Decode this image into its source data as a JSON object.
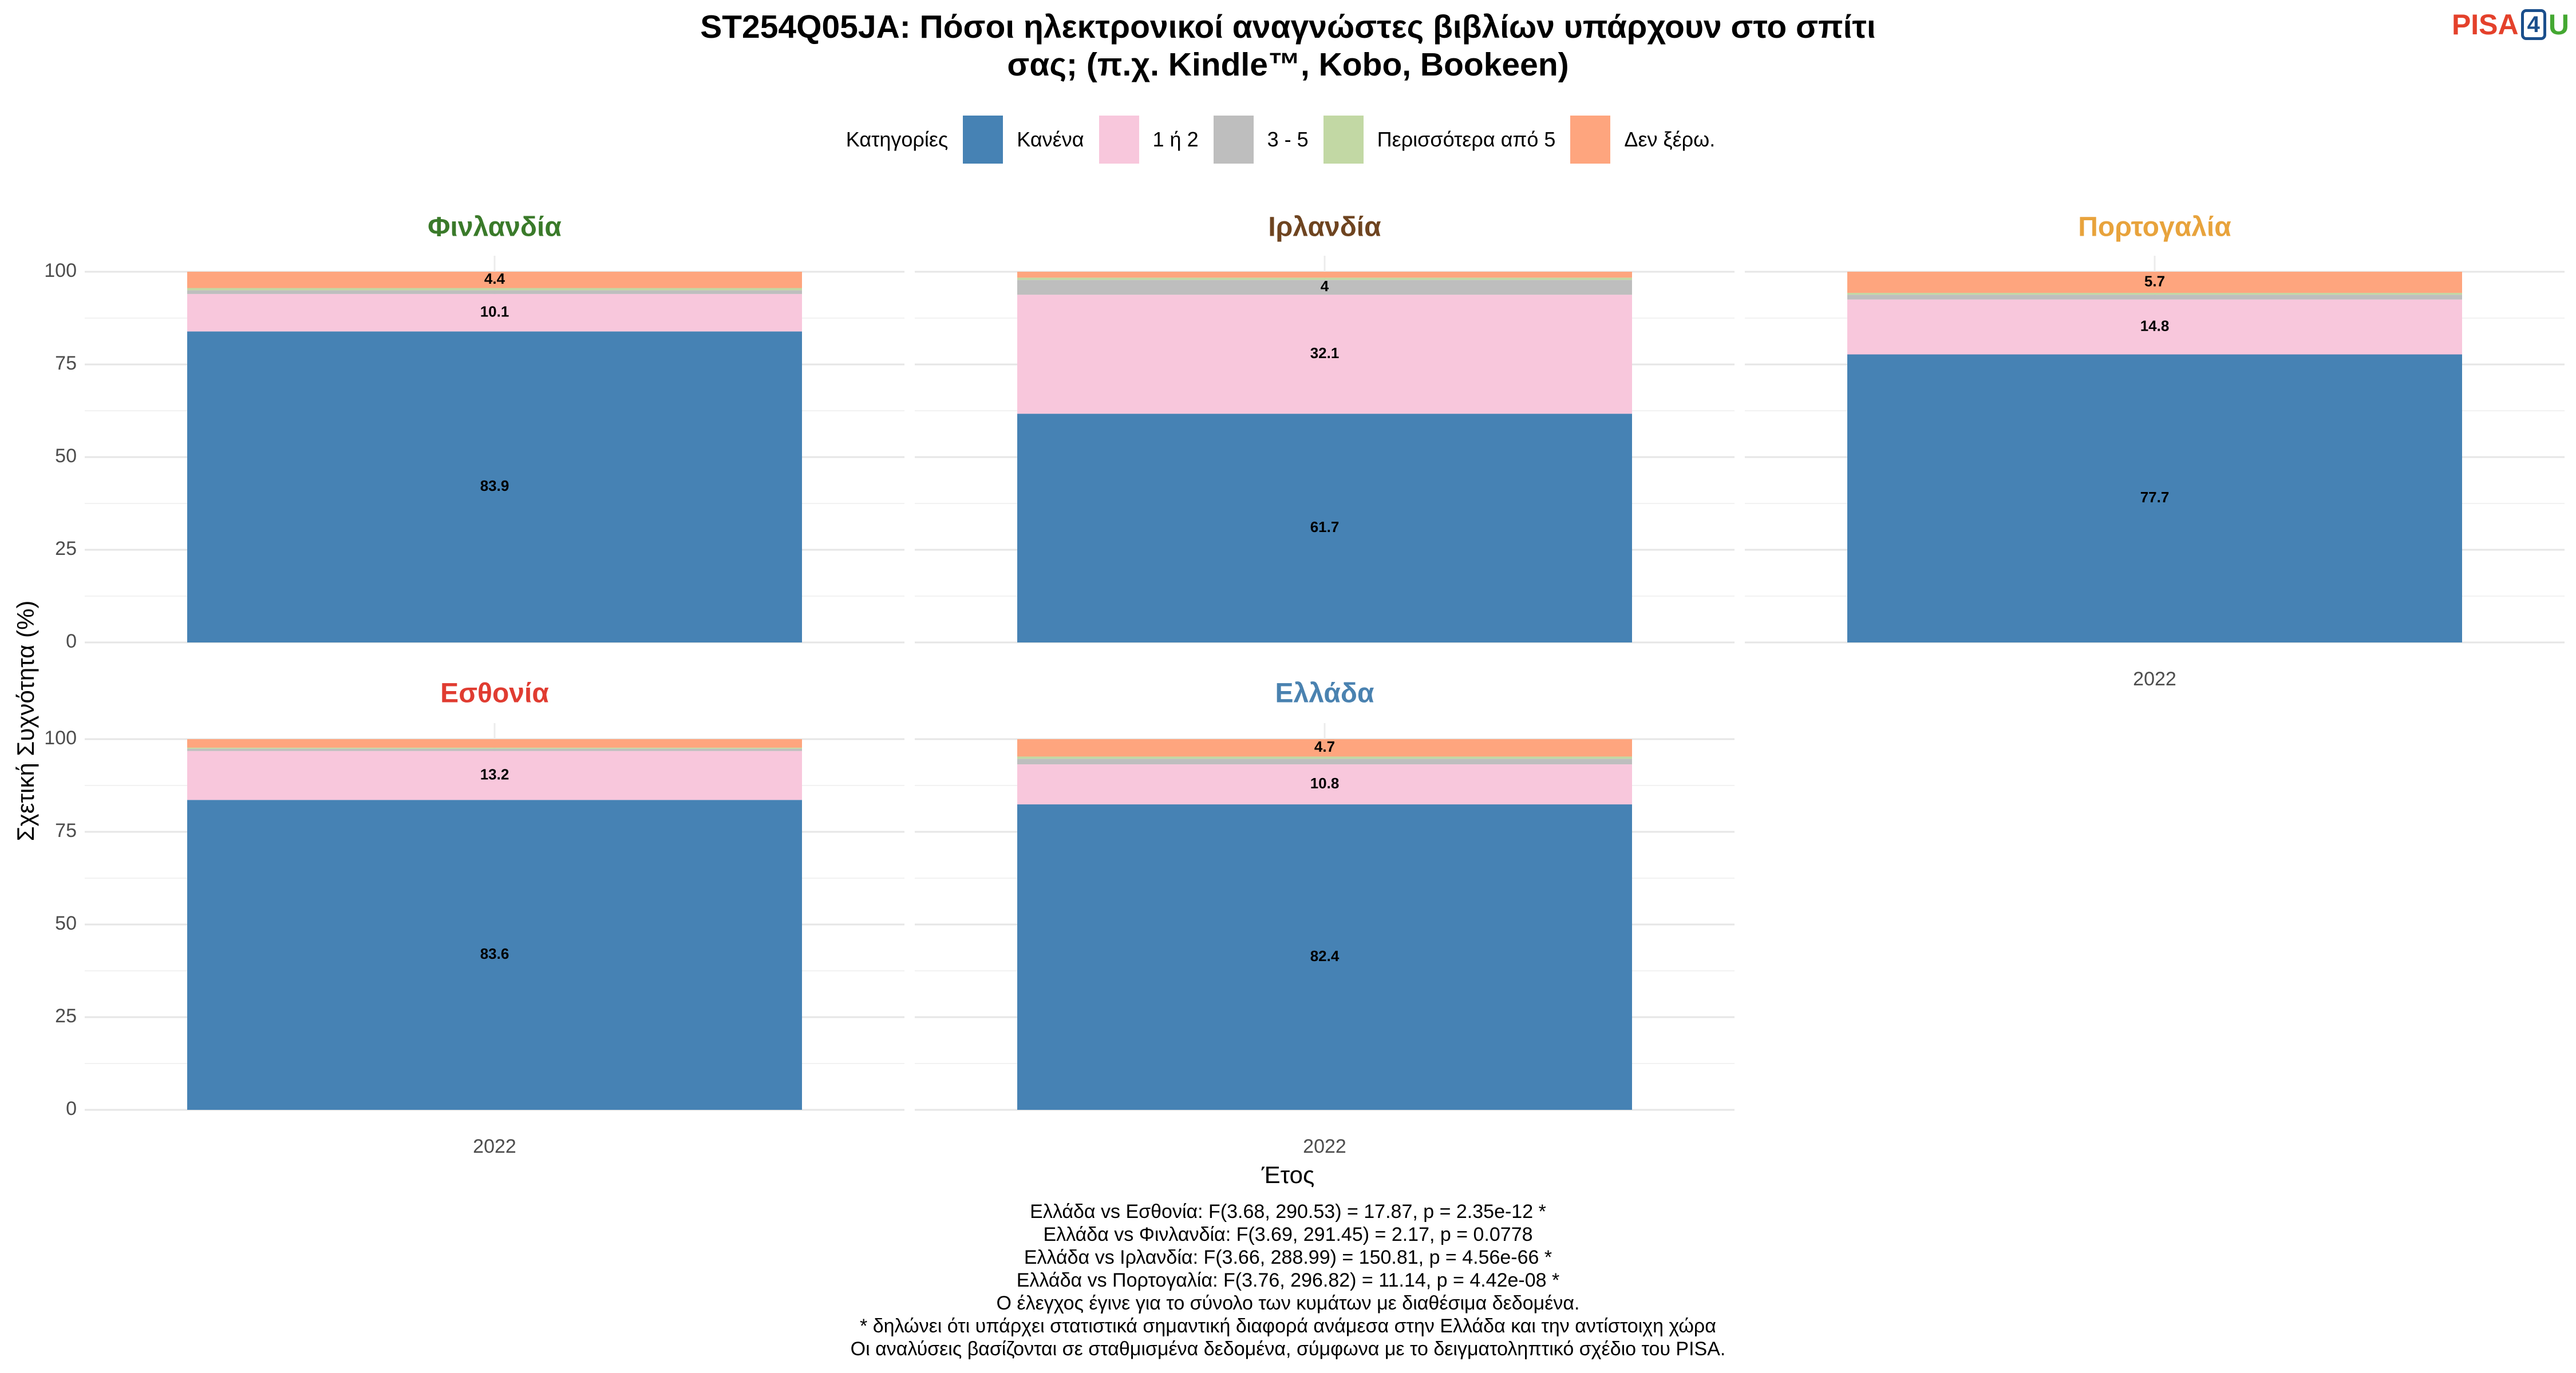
{
  "title": {
    "line1": "ST254Q05JA: Πόσοι ηλεκτρονικοί αναγνώστες βιβλίων υπάρχουν στο σπίτι",
    "line2": "σας; (π.χ. Kindle™, Kobo, Bookeen)"
  },
  "logo": {
    "part1": "PISA",
    "part2": "4",
    "part3": "U"
  },
  "legend": {
    "title": "Κατηγορίες",
    "items": [
      {
        "label": "Κανένα",
        "color": "#4682b4"
      },
      {
        "label": "1 ή 2",
        "color": "#f8c7dc"
      },
      {
        "label": "3 - 5",
        "color": "#bebebe"
      },
      {
        "label": "Περισσότερα από 5",
        "color": "#c2d8a4"
      },
      {
        "label": "Δεν ξέρω.",
        "color": "#fea57e"
      }
    ]
  },
  "axes": {
    "ylabel": "Σχετική Συχνότητα (%)",
    "xlabel": "Έτος"
  },
  "chart_data": {
    "type": "bar",
    "stacked": true,
    "xlabel": "Έτος",
    "ylabel": "Σχετική Συχνότητα (%)",
    "ylim": [
      0,
      100
    ],
    "yticks": [
      0,
      25,
      50,
      75,
      100
    ],
    "categories": [
      "2022"
    ],
    "series_names": [
      "Κανένα",
      "1 ή 2",
      "3 - 5",
      "Περισσότερα από 5",
      "Δεν ξέρω."
    ],
    "series_colors": [
      "#4682b4",
      "#f8c7dc",
      "#bebebe",
      "#c2d8a4",
      "#fea57e"
    ],
    "legend_position": "top",
    "grid": true,
    "panels": [
      {
        "name": "Φινλανδία",
        "color": "#3a7a2a",
        "year": "2022",
        "values": [
          83.9,
          10.1,
          1.0,
          0.6,
          4.4
        ],
        "labels": [
          "83.9",
          "10.1",
          "",
          "",
          "4.4"
        ]
      },
      {
        "name": "Ιρλανδία",
        "color": "#6e4420",
        "year": "2022",
        "values": [
          61.7,
          32.1,
          4.0,
          0.6,
          1.6
        ],
        "labels": [
          "61.7",
          "32.1",
          "4",
          "",
          ""
        ]
      },
      {
        "name": "Πορτογαλία",
        "color": "#e8a33c",
        "year": "2022",
        "values": [
          77.7,
          14.8,
          1.3,
          0.5,
          5.7
        ],
        "labels": [
          "77.7",
          "14.8",
          "",
          "",
          "5.7"
        ]
      },
      {
        "name": "Εσθονία",
        "color": "#e03c31",
        "year": "2022",
        "values": [
          83.6,
          13.2,
          0.6,
          0.3,
          2.3
        ],
        "labels": [
          "83.6",
          "13.2",
          "",
          "",
          ""
        ]
      },
      {
        "name": "Ελλάδα",
        "color": "#4a82b0",
        "year": "2022",
        "values": [
          82.4,
          10.8,
          1.5,
          0.6,
          4.7
        ],
        "labels": [
          "82.4",
          "10.8",
          "",
          "",
          "4.7"
        ]
      }
    ]
  },
  "footer": [
    "Ελλάδα vs Εσθονία: F(3.68, 290.53) = 17.87, p = 2.35e-12 *",
    "Ελλάδα vs Φινλανδία: F(3.69, 291.45) = 2.17, p = 0.0778",
    "Ελλάδα vs Ιρλανδία: F(3.66, 288.99) = 150.81, p = 4.56e-66 *",
    "Ελλάδα vs Πορτογαλία: F(3.76, 296.82) = 11.14, p = 4.42e-08 *",
    "Ο έλεγχος έγινε για το σύνολο των κυμάτων με διαθέσιμα δεδομένα.",
    "* δηλώνει ότι υπάρχει στατιστικά σημαντική διαφορά ανάμεσα στην Ελλάδα και την αντίστοιχη χώρα",
    "Οι αναλύσεις βασίζονται σε σταθμισμένα δεδομένα, σύμφωνα με το δειγματοληπτικό σχέδιο του PISA."
  ]
}
